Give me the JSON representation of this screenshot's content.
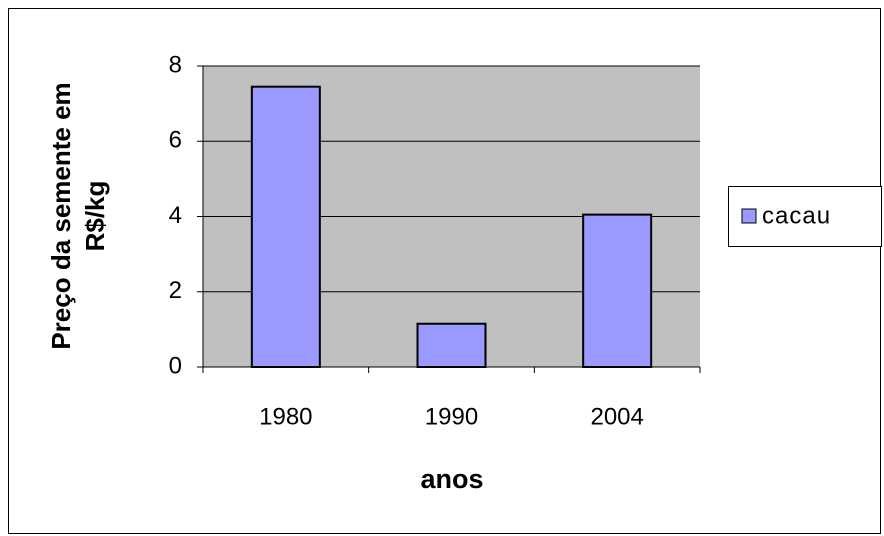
{
  "chart_data": {
    "type": "bar",
    "ylabel": [
      "Preço da semente em",
      "R$/kg"
    ],
    "xlabel": "anos",
    "categories": [
      "1980",
      "1990",
      "2004"
    ],
    "series": [
      {
        "name": "cacau",
        "color": "#9999ff",
        "values": [
          7.45,
          1.15,
          4.05
        ]
      }
    ],
    "ylim": [
      0,
      8
    ],
    "yticks": [
      0,
      2,
      4,
      6,
      8
    ],
    "grid": true,
    "legend": "right"
  }
}
